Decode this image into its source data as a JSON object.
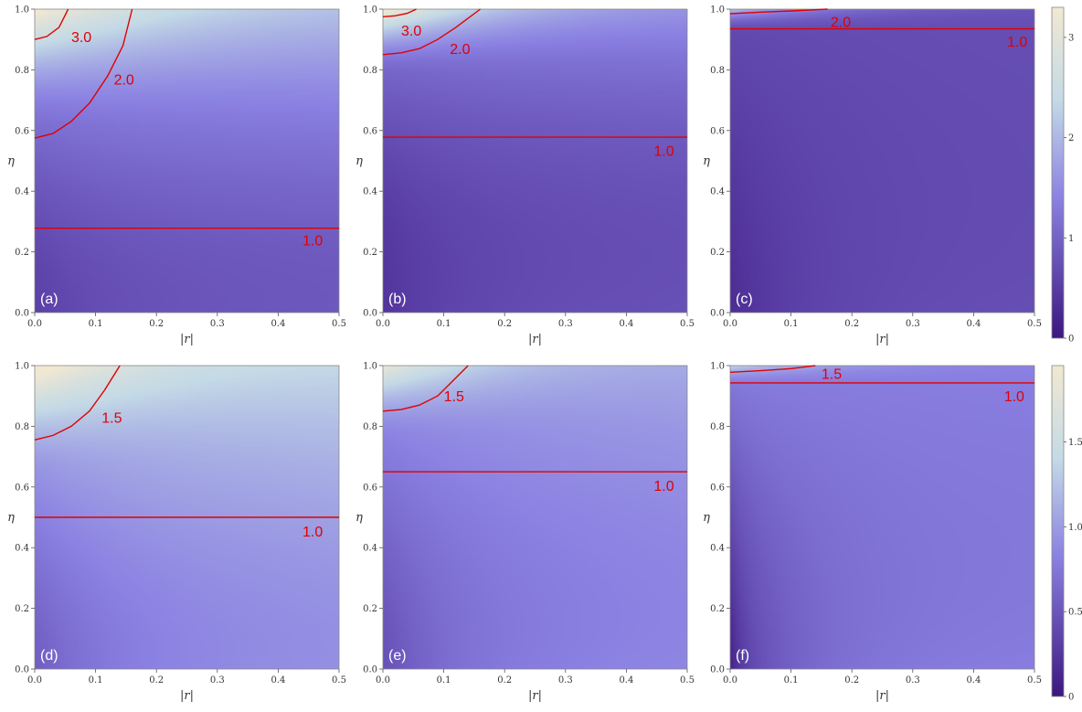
{
  "colors": {
    "dark": "#3c1680",
    "mid": "#8a80e2",
    "light": "#c4dae6",
    "high": "#f1e8d2",
    "contour": "#e00000",
    "frame": "#888888"
  },
  "colorbars": [
    {
      "range": [
        0,
        3.3
      ],
      "tick_values": [
        0,
        1,
        2,
        3
      ],
      "tick_labels": [
        "0",
        "1",
        "2",
        "3"
      ]
    },
    {
      "range": [
        0,
        1.95
      ],
      "tick_values": [
        0,
        0.5,
        1.0,
        1.5
      ],
      "tick_labels": [
        "0",
        "0.5",
        "1.0",
        "1.5"
      ]
    }
  ],
  "chart_data": [
    {
      "type": "heatmap",
      "panel": "(a)",
      "colorbar": 0,
      "xlabel": "|r|",
      "ylabel": "η",
      "xlim": [
        0,
        0.5
      ],
      "ylim": [
        0,
        1
      ],
      "x_ticks": [
        "0.0",
        "0.1",
        "0.2",
        "0.3",
        "0.4",
        "0.5"
      ],
      "y_ticks": [
        "0.0",
        "0.2",
        "0.4",
        "0.6",
        "0.8",
        "1.0"
      ],
      "field": {
        "base": 0.55,
        "eta_slope": 1.35,
        "eta_exp": 1.7,
        "corner_gain": 1.5,
        "r_scale": 0.22,
        "eta_on": 0.6,
        "r_gain": 0.3,
        "r_shift": 0.27,
        "edge_dip": 0
      },
      "contours": [
        {
          "label": "3.0",
          "points": [
            [
              0,
              0.9
            ],
            [
              0.02,
              0.91
            ],
            [
              0.04,
              0.94
            ],
            [
              0.055,
              1.0
            ]
          ],
          "label_pos": [
            0.06,
            0.91
          ]
        },
        {
          "label": "2.0",
          "points": [
            [
              0,
              0.575
            ],
            [
              0.03,
              0.59
            ],
            [
              0.06,
              0.63
            ],
            [
              0.09,
              0.69
            ],
            [
              0.12,
              0.78
            ],
            [
              0.145,
              0.88
            ],
            [
              0.16,
              1.0
            ]
          ],
          "label_pos": [
            0.13,
            0.77
          ]
        },
        {
          "label": "1.0",
          "points": [
            [
              0,
              0.278
            ],
            [
              0.5,
              0.278
            ]
          ],
          "label_pos": [
            0.44,
            0.24
          ]
        }
      ]
    },
    {
      "type": "heatmap",
      "panel": "(b)",
      "colorbar": 0,
      "xlabel": "|r|",
      "ylabel": "η",
      "xlim": [
        0,
        0.5
      ],
      "ylim": [
        0,
        1
      ],
      "x_ticks": [
        "0.0",
        "0.1",
        "0.2",
        "0.3",
        "0.4",
        "0.5"
      ],
      "y_ticks": [
        "0.0",
        "0.2",
        "0.4",
        "0.6",
        "0.8",
        "1.0"
      ],
      "field": {
        "base": 0.4,
        "eta_slope": 1.05,
        "eta_exp": 2.2,
        "corner_gain": 2.0,
        "r_scale": 0.17,
        "eta_on": 0.78,
        "r_gain": 0.35,
        "r_shift": 0.3,
        "edge_dip": 0
      },
      "contours": [
        {
          "label": "3.0",
          "points": [
            [
              0,
              0.975
            ],
            [
              0.02,
              0.978
            ],
            [
              0.04,
              0.986
            ],
            [
              0.055,
              1.0
            ]
          ],
          "label_pos": [
            0.03,
            0.93
          ]
        },
        {
          "label": "2.0",
          "points": [
            [
              0,
              0.85
            ],
            [
              0.03,
              0.856
            ],
            [
              0.06,
              0.87
            ],
            [
              0.09,
              0.9
            ],
            [
              0.12,
              0.94
            ],
            [
              0.16,
              1.0
            ]
          ],
          "label_pos": [
            0.11,
            0.87
          ]
        },
        {
          "label": "1.0",
          "points": [
            [
              0,
              0.578
            ],
            [
              0.5,
              0.578
            ]
          ],
          "label_pos": [
            0.445,
            0.535
          ]
        }
      ]
    },
    {
      "type": "heatmap",
      "panel": "(c)",
      "colorbar": 0,
      "xlabel": "|r|",
      "ylabel": "η",
      "xlim": [
        0,
        0.5
      ],
      "ylim": [
        0,
        1
      ],
      "x_ticks": [
        "0.0",
        "0.1",
        "0.2",
        "0.3",
        "0.4",
        "0.5"
      ],
      "y_ticks": [
        "0.0",
        "0.2",
        "0.4",
        "0.6",
        "0.8",
        "1.0"
      ],
      "field": {
        "base": 0.3,
        "eta_slope": 0.4,
        "eta_exp": 1.3,
        "corner_gain": 1.4,
        "r_scale": 0.17,
        "eta_on": 0.92,
        "r_gain": 0.45,
        "r_shift": 0.2,
        "edge_dip": 0
      },
      "contours": [
        {
          "label": "2.0",
          "points": [
            [
              0,
              0.985
            ],
            [
              0.05,
              0.99
            ],
            [
              0.1,
              0.994
            ],
            [
              0.16,
              1.0
            ]
          ],
          "label_pos": [
            0.165,
            0.96
          ]
        },
        {
          "label": "1.0",
          "points": [
            [
              0,
              0.935
            ],
            [
              0.5,
              0.935
            ]
          ],
          "label_pos": [
            0.455,
            0.895
          ]
        }
      ]
    },
    {
      "type": "heatmap",
      "panel": "(d)",
      "colorbar": 1,
      "xlabel": "|r|",
      "ylabel": "η",
      "xlim": [
        0,
        0.5
      ],
      "ylim": [
        0,
        1
      ],
      "x_ticks": [
        "0.0",
        "0.1",
        "0.2",
        "0.3",
        "0.4",
        "0.5"
      ],
      "y_ticks": [
        "0.0",
        "0.2",
        "0.4",
        "0.6",
        "0.8",
        "1.0"
      ],
      "field": {
        "base": 0.55,
        "eta_slope": 0.75,
        "eta_exp": 1.5,
        "corner_gain": 0.85,
        "r_scale": 0.16,
        "eta_on": 0.65,
        "r_gain": 0.35,
        "r_shift": 0.33,
        "edge_dip": 0
      },
      "contours": [
        {
          "label": "1.5",
          "points": [
            [
              0,
              0.755
            ],
            [
              0.03,
              0.77
            ],
            [
              0.06,
              0.8
            ],
            [
              0.09,
              0.85
            ],
            [
              0.115,
              0.92
            ],
            [
              0.14,
              1.0
            ]
          ],
          "label_pos": [
            0.11,
            0.83
          ]
        },
        {
          "label": "1.0",
          "points": [
            [
              0,
              0.5
            ],
            [
              0.5,
              0.5
            ]
          ],
          "label_pos": [
            0.44,
            0.455
          ]
        }
      ]
    },
    {
      "type": "heatmap",
      "panel": "(e)",
      "colorbar": 1,
      "xlabel": "|r|",
      "ylabel": "η",
      "xlim": [
        0,
        0.5
      ],
      "ylim": [
        0,
        1
      ],
      "x_ticks": [
        "0.0",
        "0.1",
        "0.2",
        "0.3",
        "0.4",
        "0.5"
      ],
      "y_ticks": [
        "0.0",
        "0.2",
        "0.4",
        "0.6",
        "0.8",
        "1.0"
      ],
      "field": {
        "base": 0.45,
        "eta_slope": 0.55,
        "eta_exp": 1.5,
        "corner_gain": 0.85,
        "r_scale": 0.16,
        "eta_on": 0.75,
        "r_gain": 0.4,
        "r_shift": 0.3,
        "edge_dip": 0
      },
      "contours": [
        {
          "label": "1.5",
          "points": [
            [
              0,
              0.85
            ],
            [
              0.03,
              0.855
            ],
            [
              0.06,
              0.87
            ],
            [
              0.09,
              0.9
            ],
            [
              0.115,
              0.95
            ],
            [
              0.14,
              1.0
            ]
          ],
          "label_pos": [
            0.1,
            0.9
          ]
        },
        {
          "label": "1.0",
          "points": [
            [
              0,
              0.65
            ],
            [
              0.5,
              0.65
            ]
          ],
          "label_pos": [
            0.445,
            0.605
          ]
        }
      ]
    },
    {
      "type": "heatmap",
      "panel": "(f)",
      "colorbar": 1,
      "xlabel": "|r|",
      "ylabel": "η",
      "xlim": [
        0,
        0.5
      ],
      "ylim": [
        0,
        1
      ],
      "x_ticks": [
        "0.0",
        "0.1",
        "0.2",
        "0.3",
        "0.4",
        "0.5"
      ],
      "y_ticks": [
        "0.0",
        "0.2",
        "0.4",
        "0.6",
        "0.8",
        "1.0"
      ],
      "field": {
        "base": 0.3,
        "eta_slope": 0.5,
        "eta_exp": 1.3,
        "corner_gain": 0.6,
        "r_scale": 0.15,
        "eta_on": 0.93,
        "r_gain": 0.55,
        "r_shift": 0.06,
        "edge_dip": 0.22
      },
      "contours": [
        {
          "label": "1.5",
          "points": [
            [
              0,
              0.978
            ],
            [
              0.05,
              0.983
            ],
            [
              0.1,
              0.99
            ],
            [
              0.14,
              1.0
            ]
          ],
          "label_pos": [
            0.15,
            0.975
          ]
        },
        {
          "label": "1.0",
          "points": [
            [
              0,
              0.943
            ],
            [
              0.5,
              0.943
            ]
          ],
          "label_pos": [
            0.45,
            0.9
          ]
        }
      ]
    }
  ]
}
